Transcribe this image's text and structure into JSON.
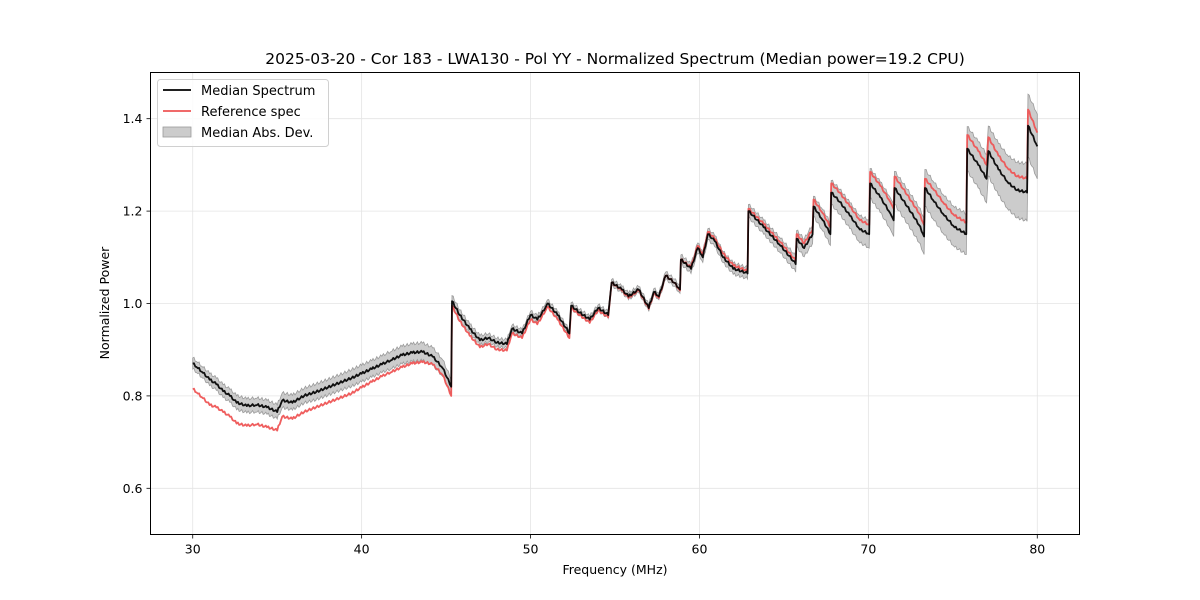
{
  "chart_data": {
    "type": "line",
    "title": "2025-03-20 - Cor 183 - LWA130 - Pol YY - Normalized Spectrum (Median power=19.2 CPU)",
    "xlabel": "Frequency (MHz)",
    "ylabel": "Normalized Power",
    "xlim": [
      27.5,
      82.5
    ],
    "ylim": [
      0.5,
      1.5
    ],
    "xticks": [
      30,
      40,
      50,
      60,
      70,
      80
    ],
    "xtick_labels": [
      "30",
      "40",
      "50",
      "60",
      "70",
      "80"
    ],
    "yticks": [
      0.6,
      0.8,
      1.0,
      1.2,
      1.4
    ],
    "ytick_labels": [
      "0.6",
      "0.8",
      "1.0",
      "1.2",
      "1.4"
    ],
    "grid": true,
    "legend_position": "top-left",
    "legend": [
      {
        "label": "Median Spectrum",
        "kind": "line",
        "color": "#000000"
      },
      {
        "label": "Reference spec",
        "kind": "line",
        "color": "#ee5555"
      },
      {
        "label": "Median Abs. Dev.",
        "kind": "band",
        "color": "#b0b0b0"
      }
    ],
    "x": [
      30.0,
      30.3,
      30.6,
      31.0,
      31.4,
      31.8,
      32.2,
      32.6,
      33.2,
      33.8,
      34.4,
      35.0,
      35.3,
      35.9,
      36.6,
      37.3,
      38.0,
      38.7,
      39.4,
      40.0,
      40.6,
      41.2,
      41.8,
      42.4,
      43.0,
      43.6,
      44.2,
      44.8,
      45.3,
      45.35,
      45.8,
      46.4,
      47.0,
      47.5,
      48.0,
      48.6,
      48.9,
      49.5,
      50.0,
      50.4,
      50.8,
      51.0,
      51.6,
      52.3,
      52.4,
      52.9,
      53.5,
      54.0,
      54.6,
      54.8,
      55.4,
      55.8,
      56.4,
      57.0,
      57.3,
      57.6,
      58.0,
      58.5,
      58.85,
      58.9,
      59.5,
      59.9,
      60.2,
      60.5,
      60.9,
      61.4,
      62.0,
      62.85,
      62.9,
      63.8,
      64.8,
      65.7,
      65.75,
      66.2,
      66.7,
      66.75,
      67.3,
      67.75,
      67.8,
      68.3,
      68.9,
      69.5,
      70.05,
      70.1,
      70.7,
      71.3,
      71.5,
      71.55,
      72.3,
      73.0,
      73.3,
      73.35,
      73.9,
      74.5,
      75.1,
      75.8,
      75.85,
      76.5,
      77.0,
      77.1,
      77.7,
      78.3,
      78.8,
      79.4,
      79.45,
      80.0
    ],
    "series": [
      {
        "name": "Median Spectrum",
        "color": "#000000",
        "values": [
          0.87,
          0.86,
          0.85,
          0.835,
          0.825,
          0.81,
          0.8,
          0.785,
          0.778,
          0.78,
          0.775,
          0.765,
          0.79,
          0.785,
          0.8,
          0.808,
          0.818,
          0.828,
          0.838,
          0.848,
          0.858,
          0.868,
          0.878,
          0.888,
          0.893,
          0.895,
          0.885,
          0.86,
          0.82,
          1.005,
          0.975,
          0.945,
          0.92,
          0.925,
          0.915,
          0.912,
          0.945,
          0.935,
          0.975,
          0.965,
          0.985,
          1.0,
          0.975,
          0.935,
          0.995,
          0.98,
          0.965,
          0.99,
          0.975,
          1.045,
          1.03,
          1.015,
          1.03,
          0.99,
          1.025,
          1.015,
          1.06,
          1.045,
          1.03,
          1.095,
          1.075,
          1.12,
          1.1,
          1.15,
          1.135,
          1.1,
          1.075,
          1.065,
          1.2,
          1.165,
          1.125,
          1.085,
          1.14,
          1.12,
          1.15,
          1.21,
          1.18,
          1.15,
          1.24,
          1.22,
          1.19,
          1.16,
          1.15,
          1.26,
          1.23,
          1.195,
          1.18,
          1.25,
          1.21,
          1.17,
          1.145,
          1.25,
          1.22,
          1.19,
          1.165,
          1.15,
          1.335,
          1.3,
          1.27,
          1.33,
          1.29,
          1.26,
          1.245,
          1.24,
          1.385,
          1.34
        ]
      },
      {
        "name": "Reference spec",
        "color": "#ee5555",
        "values": [
          0.815,
          0.805,
          0.795,
          0.78,
          0.775,
          0.765,
          0.755,
          0.74,
          0.735,
          0.738,
          0.732,
          0.725,
          0.755,
          0.75,
          0.765,
          0.775,
          0.785,
          0.795,
          0.805,
          0.818,
          0.83,
          0.842,
          0.852,
          0.862,
          0.87,
          0.873,
          0.868,
          0.845,
          0.8,
          0.995,
          0.962,
          0.93,
          0.905,
          0.912,
          0.9,
          0.898,
          0.935,
          0.925,
          0.965,
          0.955,
          0.978,
          0.993,
          0.965,
          0.925,
          0.99,
          0.975,
          0.958,
          0.985,
          0.97,
          1.045,
          1.028,
          1.012,
          1.028,
          0.988,
          1.022,
          1.012,
          1.06,
          1.045,
          1.028,
          1.095,
          1.078,
          1.125,
          1.105,
          1.155,
          1.14,
          1.108,
          1.082,
          1.07,
          1.205,
          1.172,
          1.132,
          1.092,
          1.15,
          1.13,
          1.16,
          1.225,
          1.195,
          1.165,
          1.26,
          1.24,
          1.21,
          1.18,
          1.17,
          1.285,
          1.255,
          1.22,
          1.205,
          1.275,
          1.235,
          1.195,
          1.17,
          1.27,
          1.245,
          1.215,
          1.19,
          1.175,
          1.365,
          1.33,
          1.3,
          1.36,
          1.32,
          1.29,
          1.275,
          1.27,
          1.42,
          1.37
        ]
      }
    ],
    "band": {
      "name": "Median Abs. Dev.",
      "color": "#b0b0b0",
      "half_width": [
        0.012,
        0.012,
        0.012,
        0.013,
        0.013,
        0.014,
        0.014,
        0.015,
        0.015,
        0.015,
        0.015,
        0.015,
        0.016,
        0.016,
        0.016,
        0.017,
        0.017,
        0.017,
        0.018,
        0.018,
        0.018,
        0.018,
        0.019,
        0.019,
        0.019,
        0.019,
        0.019,
        0.018,
        0.016,
        0.012,
        0.011,
        0.01,
        0.01,
        0.009,
        0.009,
        0.009,
        0.008,
        0.008,
        0.008,
        0.008,
        0.008,
        0.008,
        0.007,
        0.007,
        0.007,
        0.007,
        0.007,
        0.007,
        0.007,
        0.007,
        0.007,
        0.007,
        0.007,
        0.007,
        0.007,
        0.007,
        0.008,
        0.008,
        0.008,
        0.01,
        0.01,
        0.011,
        0.011,
        0.012,
        0.012,
        0.012,
        0.012,
        0.012,
        0.014,
        0.015,
        0.016,
        0.017,
        0.018,
        0.019,
        0.02,
        0.022,
        0.023,
        0.024,
        0.026,
        0.027,
        0.028,
        0.029,
        0.03,
        0.032,
        0.033,
        0.034,
        0.035,
        0.036,
        0.037,
        0.038,
        0.039,
        0.04,
        0.041,
        0.042,
        0.043,
        0.044,
        0.048,
        0.05,
        0.052,
        0.054,
        0.056,
        0.058,
        0.06,
        0.062,
        0.068,
        0.07
      ]
    }
  }
}
